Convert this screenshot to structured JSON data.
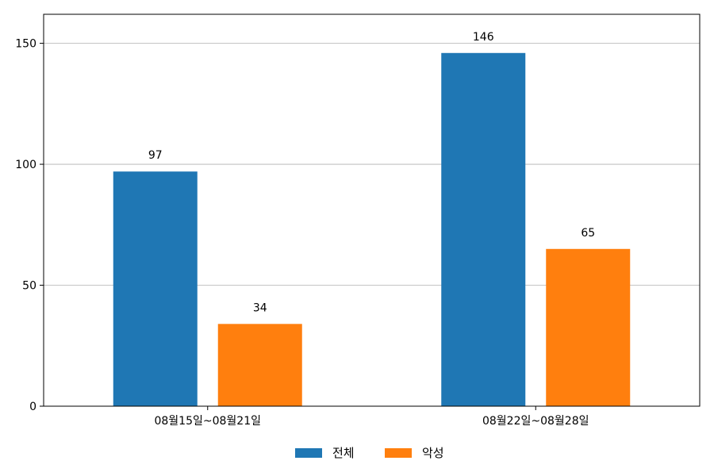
{
  "chart_data": {
    "type": "bar",
    "categories": [
      "08월15일~08월21일",
      "08월22일~08월28일"
    ],
    "series": [
      {
        "name": "전체",
        "values": [
          97,
          146
        ],
        "color": "#1f77b4"
      },
      {
        "name": "악성",
        "values": [
          34,
          65
        ],
        "color": "#ff7f0e"
      }
    ],
    "ylim": [
      0,
      162
    ],
    "yticks": [
      0,
      50,
      100,
      150
    ],
    "grid": "horizontal",
    "legend_position": "bottom-center",
    "data_labels": true
  }
}
